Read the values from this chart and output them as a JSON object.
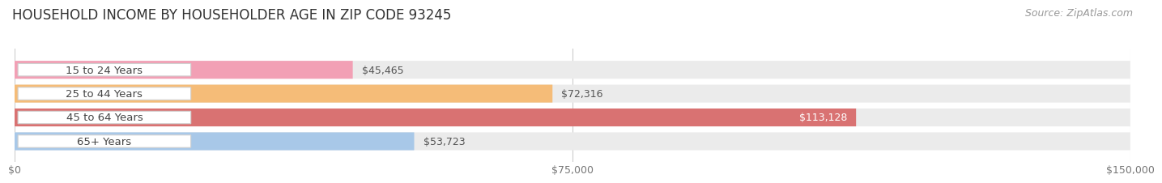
{
  "title": "HOUSEHOLD INCOME BY HOUSEHOLDER AGE IN ZIP CODE 93245",
  "source": "Source: ZipAtlas.com",
  "categories": [
    "15 to 24 Years",
    "25 to 44 Years",
    "45 to 64 Years",
    "65+ Years"
  ],
  "values": [
    45465,
    72316,
    113128,
    53723
  ],
  "bar_colors": [
    "#f2a0b5",
    "#f5bc78",
    "#d97272",
    "#a8c8e8"
  ],
  "bar_bg_colors": [
    "#ede8ee",
    "#ededed",
    "#ededed",
    "#ededed"
  ],
  "value_labels": [
    "$45,465",
    "$72,316",
    "$113,128",
    "$53,723"
  ],
  "value_inside": [
    false,
    false,
    true,
    false
  ],
  "xlim": [
    0,
    150000
  ],
  "xtick_values": [
    0,
    75000,
    150000
  ],
  "xtick_labels": [
    "$0",
    "$75,000",
    "$150,000"
  ],
  "figure_bg": "#ffffff",
  "plot_bg": "#ffffff",
  "bar_height": 0.75,
  "title_fontsize": 12,
  "label_fontsize": 9.5,
  "value_fontsize": 9,
  "source_fontsize": 9
}
